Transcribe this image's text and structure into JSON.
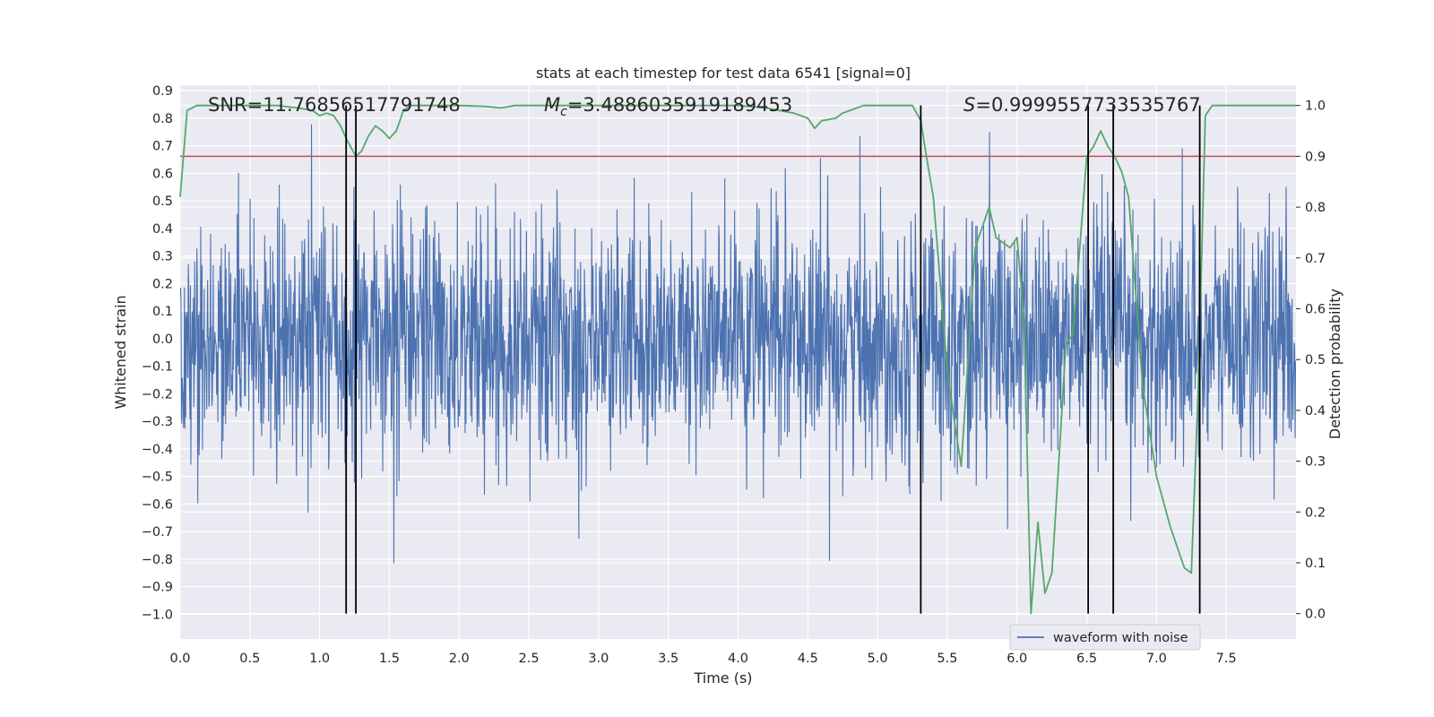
{
  "chart_data": {
    "type": "line",
    "title": "stats at each timestep for test data 6541 [signal=0]",
    "xlabel": "Time (s)",
    "ylabel_left": "Whitened strain",
    "ylabel_right": "Detection probability",
    "xlim": [
      0.0,
      8.0
    ],
    "ylim_left": [
      -1.09,
      0.92
    ],
    "ylim_right": [
      -0.05,
      1.04
    ],
    "x_ticks": [
      "0.0",
      "0.5",
      "1.0",
      "1.5",
      "2.0",
      "2.5",
      "3.0",
      "3.5",
      "4.0",
      "4.5",
      "5.0",
      "5.5",
      "6.0",
      "6.5",
      "7.0",
      "7.5"
    ],
    "y_left_ticks": [
      "0.9",
      "0.8",
      "0.7",
      "0.6",
      "0.5",
      "0.4",
      "0.3",
      "0.2",
      "0.1",
      "0.0",
      "−0.1",
      "−0.2",
      "−0.3",
      "−0.4",
      "−0.5",
      "−0.6",
      "−0.7",
      "−0.8",
      "−0.9",
      "−1.0"
    ],
    "y_right_ticks": [
      "1.0",
      "0.9",
      "0.8",
      "0.7",
      "0.6",
      "0.5",
      "0.4",
      "0.3",
      "0.2",
      "0.1",
      "0.0"
    ],
    "grid": true,
    "legend_location": "lower right",
    "annotations": {
      "snr": "SNR=11.76856517791748",
      "mc": "=3.4886035919189453",
      "mc_symbol": "M",
      "mc_subscript": "c",
      "s_symbol": "S",
      "s": "=0.9999557733535767"
    },
    "threshold": 0.9,
    "vertical_lines_x": [
      1.19,
      1.26,
      5.31,
      6.51,
      6.69,
      7.31
    ],
    "series": [
      {
        "name": "waveform with noise",
        "kind": "noise",
        "color": "#4c72b0",
        "note_x_range": [
          0.0,
          8.0
        ]
      },
      {
        "name": "",
        "kind": "probability",
        "color": "#55a868",
        "x": [
          0.0,
          0.05,
          0.12,
          0.2,
          0.3,
          0.5,
          0.7,
          0.85,
          0.95,
          1.0,
          1.05,
          1.1,
          1.15,
          1.2,
          1.26,
          1.3,
          1.35,
          1.4,
          1.45,
          1.5,
          1.55,
          1.6,
          1.65,
          1.7,
          2.0,
          2.2,
          2.3,
          2.4,
          2.5,
          2.7,
          3.0,
          3.5,
          4.0,
          4.2,
          4.4,
          4.5,
          4.55,
          4.6,
          4.7,
          4.75,
          4.8,
          4.85,
          4.9,
          5.0,
          5.1,
          5.25,
          5.31,
          5.35,
          5.4,
          5.5,
          5.55,
          5.6,
          5.7,
          5.8,
          5.85,
          5.9,
          5.95,
          6.0,
          6.05,
          6.1,
          6.15,
          6.2,
          6.25,
          6.3,
          6.35,
          6.4,
          6.45,
          6.5,
          6.55,
          6.6,
          6.65,
          6.7,
          6.75,
          6.8,
          6.9,
          7.0,
          7.1,
          7.2,
          7.25,
          7.3,
          7.35,
          7.4,
          7.5,
          8.0
        ],
        "values": [
          0.82,
          0.99,
          1.0,
          1.0,
          1.0,
          1.0,
          1.0,
          0.995,
          0.99,
          0.98,
          0.985,
          0.98,
          0.96,
          0.93,
          0.9,
          0.91,
          0.94,
          0.96,
          0.95,
          0.935,
          0.95,
          0.99,
          1.0,
          1.0,
          1.0,
          0.998,
          0.995,
          1.0,
          1.0,
          1.0,
          1.0,
          1.0,
          1.0,
          0.995,
          0.985,
          0.975,
          0.955,
          0.97,
          0.975,
          0.985,
          0.99,
          0.995,
          1.0,
          1.0,
          1.0,
          1.0,
          0.97,
          0.9,
          0.82,
          0.48,
          0.38,
          0.29,
          0.72,
          0.8,
          0.74,
          0.73,
          0.72,
          0.74,
          0.58,
          0.0,
          0.18,
          0.04,
          0.08,
          0.3,
          0.53,
          0.55,
          0.72,
          0.9,
          0.92,
          0.95,
          0.92,
          0.9,
          0.87,
          0.82,
          0.45,
          0.27,
          0.17,
          0.09,
          0.08,
          0.45,
          0.98,
          1.0,
          1.0,
          1.0
        ]
      },
      {
        "name": "",
        "kind": "threshold",
        "color": "#c44e52",
        "values": [
          0.9
        ]
      }
    ]
  }
}
